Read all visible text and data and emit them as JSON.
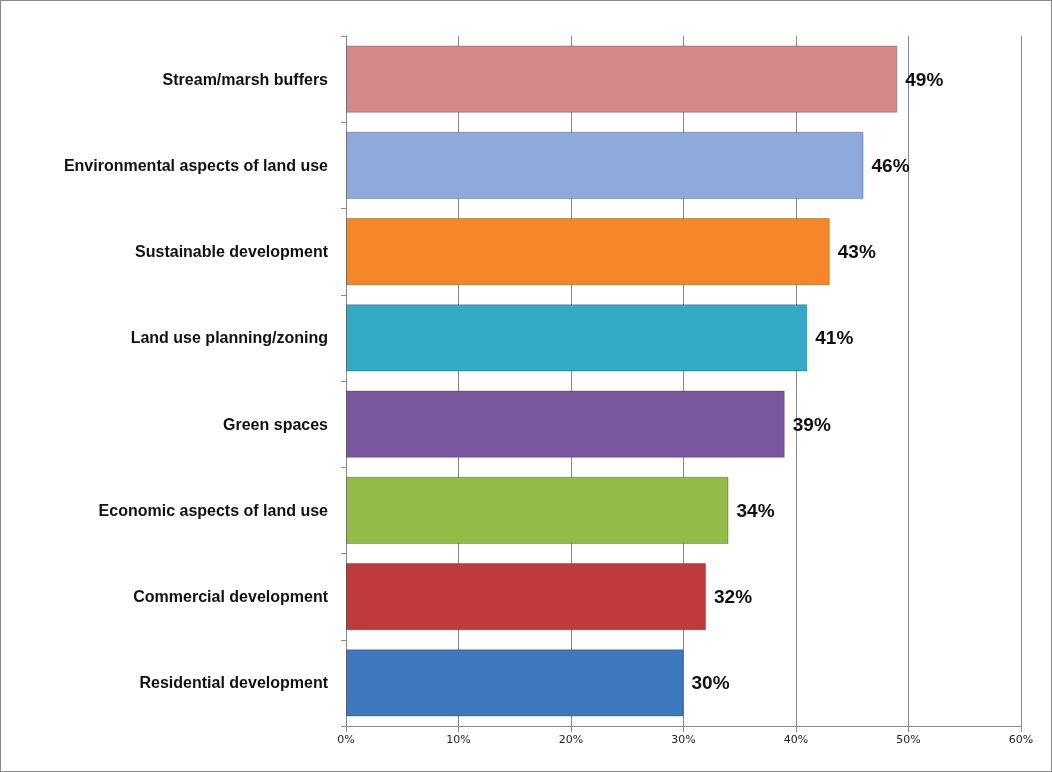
{
  "chart_data": {
    "type": "bar",
    "orientation": "horizontal",
    "categories": [
      "Stream/marsh buffers",
      "Environmental aspects of land use",
      "Sustainable development",
      "Land use planning/zoning",
      "Green spaces",
      "Economic aspects of land use",
      "Commercial development",
      "Residential development"
    ],
    "values": [
      49,
      46,
      43,
      41,
      39,
      34,
      32,
      30
    ],
    "colors": [
      "#d58a89",
      "#8eaadb",
      "#f6862a",
      "#35aac6",
      "#7a58a0",
      "#94bb48",
      "#c0393b",
      "#3f78bf"
    ],
    "value_labels": [
      "49%",
      "46%",
      "43%",
      "41%",
      "39%",
      "34%",
      "32%",
      "30%"
    ],
    "xlim": [
      0,
      60
    ],
    "xticks": [
      {
        "value": 0,
        "label": "0%"
      },
      {
        "value": 10,
        "label": "10%"
      },
      {
        "value": 20,
        "label": "20%"
      },
      {
        "value": 30,
        "label": "30%"
      },
      {
        "value": 40,
        "label": "40%"
      },
      {
        "value": 50,
        "label": "50%"
      },
      {
        "value": 60,
        "label": "60%"
      }
    ],
    "grid": "x"
  }
}
